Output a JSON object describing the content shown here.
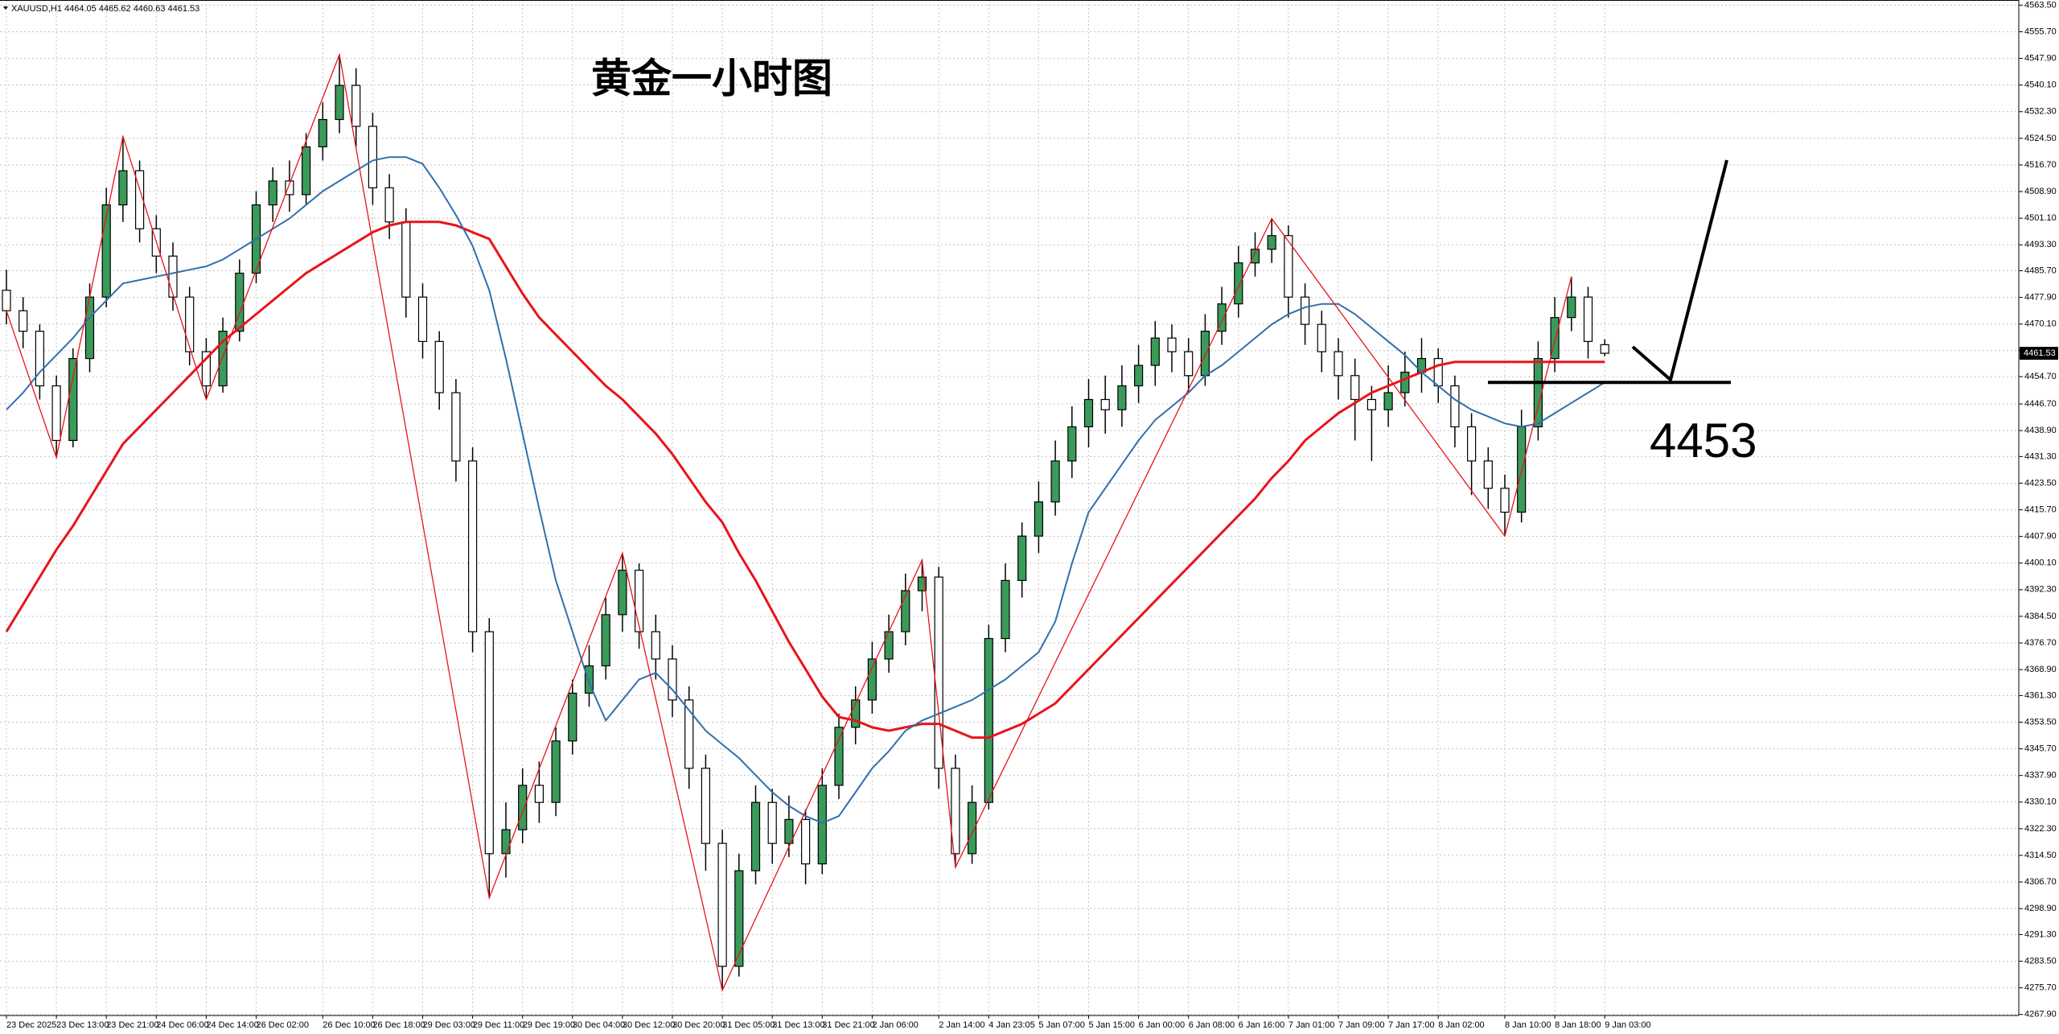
{
  "chart_data": {
    "type": "candlestick",
    "symbol": "XAUUSD,H1",
    "title": "黄金一小时图",
    "level": 4453,
    "up_color": "#3a9a5a",
    "down_color": "#ffffff",
    "grid": true,
    "ylim": [
      4267.6,
      4565
    ],
    "yticks": [
      {
        "value": 4563.5,
        "label": "4563.50"
      },
      {
        "value": 4555.7,
        "label": "4555.70"
      },
      {
        "value": 4547.9,
        "label": "4547.90"
      },
      {
        "value": 4540.1,
        "label": "4540.10"
      },
      {
        "value": 4532.3,
        "label": "4532.30"
      },
      {
        "value": 4524.5,
        "label": "4524.50"
      },
      {
        "value": 4516.7,
        "label": "4516.70"
      },
      {
        "value": 4508.9,
        "label": "4508.90"
      },
      {
        "value": 4501.1,
        "label": "4501.10"
      },
      {
        "value": 4493.3,
        "label": "4493.30"
      },
      {
        "value": 4485.7,
        "label": "4485.70"
      },
      {
        "value": 4477.9,
        "label": "4477.90"
      },
      {
        "value": 4470.1,
        "label": "4470.10"
      },
      {
        "value": 4462.3,
        "label": "4462.30"
      },
      {
        "value": 4454.7,
        "label": "4454.70"
      },
      {
        "value": 4446.7,
        "label": "4446.70"
      },
      {
        "value": 4438.9,
        "label": "4438.90"
      },
      {
        "value": 4431.3,
        "label": "4431.30"
      },
      {
        "value": 4423.5,
        "label": "4423.50"
      },
      {
        "value": 4415.7,
        "label": "4415.70"
      },
      {
        "value": 4407.9,
        "label": "4407.90"
      },
      {
        "value": 4400.1,
        "label": "4400.10"
      },
      {
        "value": 4392.3,
        "label": "4392.30"
      },
      {
        "value": 4384.5,
        "label": "4384.50"
      },
      {
        "value": 4376.7,
        "label": "4376.70"
      },
      {
        "value": 4368.9,
        "label": "4368.90"
      },
      {
        "value": 4361.3,
        "label": "4361.30"
      },
      {
        "value": 4353.5,
        "label": "4353.50"
      },
      {
        "value": 4345.7,
        "label": "4345.70"
      },
      {
        "value": 4337.9,
        "label": "4337.90"
      },
      {
        "value": 4330.1,
        "label": "4330.10"
      },
      {
        "value": 4322.3,
        "label": "4322.30"
      },
      {
        "value": 4314.5,
        "label": "4314.50"
      },
      {
        "value": 4306.7,
        "label": "4306.70"
      },
      {
        "value": 4298.9,
        "label": "4298.90"
      },
      {
        "value": 4291.3,
        "label": "4291.30"
      },
      {
        "value": 4283.5,
        "label": "4283.50"
      },
      {
        "value": 4275.7,
        "label": "4275.70"
      },
      {
        "value": 4267.9,
        "label": "4267.90"
      }
    ],
    "categories": [
      "23 Dec 2025",
      null,
      null,
      "23 Dec 13:00",
      null,
      null,
      "23 Dec 21:00",
      null,
      null,
      "24 Dec 06:00",
      null,
      null,
      "24 Dec 14:00",
      null,
      null,
      "26 Dec 02:00",
      null,
      null,
      null,
      "26 Dec 10:00",
      null,
      null,
      "26 Dec 18:00",
      null,
      null,
      "29 Dec 03:00",
      null,
      null,
      "29 Dec 11:00",
      null,
      null,
      "29 Dec 19:00",
      null,
      null,
      "30 Dec 04:00",
      null,
      null,
      "30 Dec 12:00",
      null,
      null,
      "30 Dec 20:00",
      null,
      null,
      "31 Dec 05:00",
      null,
      null,
      "31 Dec 13:00",
      null,
      null,
      "31 Dec 21:00",
      null,
      null,
      "2 Jan 06:00",
      null,
      null,
      null,
      "2 Jan 14:00",
      null,
      null,
      "4 Jan 23:05",
      null,
      null,
      "5 Jan 07:00",
      null,
      null,
      "5 Jan 15:00",
      null,
      null,
      "6 Jan 00:00",
      null,
      null,
      "6 Jan 08:00",
      null,
      null,
      "6 Jan 16:00",
      null,
      null,
      "7 Jan 01:00",
      null,
      null,
      "7 Jan 09:00",
      null,
      null,
      "7 Jan 17:00",
      null,
      null,
      "8 Jan 02:00",
      null,
      null,
      null,
      "8 Jan 10:00",
      null,
      null,
      "8 Jan 18:00",
      null,
      null,
      "9 Jan 03:00"
    ],
    "open": [
      4480,
      4474,
      4468,
      4452,
      4436,
      4460,
      4478,
      4505,
      4515,
      4498,
      4490,
      4478,
      4462,
      4452,
      4468,
      4485,
      4505,
      4512,
      4508,
      4522,
      4530,
      4540,
      4528,
      4510,
      4500,
      4478,
      4465,
      4450,
      4430,
      4380,
      4315,
      4322,
      4335,
      4330,
      4348,
      4362,
      4370,
      4385,
      4398,
      4380,
      4372,
      4360,
      4340,
      4318,
      4282,
      4310,
      4330,
      4318,
      4325,
      4312,
      4335,
      4352,
      4360,
      4372,
      4380,
      4392,
      4396,
      4340,
      4315,
      4330,
      4378,
      4395,
      4408,
      4418,
      4430,
      4440,
      4448,
      4445,
      4452,
      4458,
      4466,
      4462,
      4455,
      4468,
      4476,
      4488,
      4492,
      4496,
      4478,
      4470,
      4462,
      4455,
      4448,
      4445,
      4450,
      4456,
      4460,
      4452,
      4440,
      4430,
      4422,
      4415,
      4440,
      4460,
      4472,
      4478,
      4464.05
    ],
    "high": [
      4486,
      4478,
      4470,
      4455,
      4463,
      4482,
      4510,
      4525,
      4518,
      4502,
      4494,
      4481,
      4466,
      4472,
      4489,
      4509,
      4516,
      4518,
      4526,
      4535,
      4549,
      4545,
      4532,
      4514,
      4504,
      4482,
      4468,
      4454,
      4434,
      4384,
      4330,
      4340,
      4342,
      4352,
      4366,
      4376,
      4390,
      4403,
      4400,
      4385,
      4376,
      4364,
      4344,
      4322,
      4315,
      4335,
      4334,
      4332,
      4328,
      4340,
      4356,
      4364,
      4377,
      4385,
      4397,
      4401,
      4399,
      4344,
      4335,
      4382,
      4400,
      4412,
      4424,
      4436,
      4446,
      4454,
      4455,
      4458,
      4464,
      4471,
      4470,
      4466,
      4473,
      4481,
      4493,
      4497,
      4501,
      4499,
      4482,
      4474,
      4466,
      4460,
      4452,
      4458,
      4462,
      4466,
      4463,
      4455,
      4444,
      4434,
      4426,
      4445,
      4465,
      4478,
      4484,
      4481,
      4465.62
    ],
    "low": [
      4470,
      4463,
      4448,
      4431,
      4434,
      4456,
      4475,
      4500,
      4494,
      4485,
      4474,
      4458,
      4448,
      4450,
      4465,
      4482,
      4500,
      4503,
      4505,
      4518,
      4526,
      4522,
      4505,
      4495,
      4472,
      4460,
      4445,
      4424,
      4374,
      4302,
      4308,
      4318,
      4324,
      4326,
      4344,
      4358,
      4366,
      4380,
      4375,
      4366,
      4355,
      4334,
      4310,
      4275,
      4279,
      4306,
      4312,
      4314,
      4306,
      4309,
      4331,
      4347,
      4356,
      4368,
      4376,
      4386,
      4334,
      4311,
      4312,
      4328,
      4374,
      4390,
      4403,
      4414,
      4425,
      4434,
      4438,
      4440,
      4447,
      4452,
      4456,
      4450,
      4452,
      4464,
      4472,
      4484,
      4488,
      4472,
      4464,
      4456,
      4448,
      4436,
      4430,
      4440,
      4446,
      4450,
      4447,
      4434,
      4420,
      4416,
      4408,
      4412,
      4436,
      4456,
      4468,
      4460,
      4460.63
    ],
    "close": [
      4474,
      4468,
      4452,
      4436,
      4460,
      4478,
      4505,
      4515,
      4498,
      4490,
      4478,
      4462,
      4452,
      4468,
      4485,
      4505,
      4512,
      4508,
      4522,
      4530,
      4540,
      4528,
      4510,
      4500,
      4478,
      4465,
      4450,
      4430,
      4380,
      4315,
      4322,
      4335,
      4330,
      4348,
      4362,
      4370,
      4385,
      4398,
      4380,
      4372,
      4360,
      4340,
      4318,
      4282,
      4310,
      4330,
      4318,
      4325,
      4312,
      4335,
      4352,
      4360,
      4372,
      4380,
      4392,
      4396,
      4340,
      4315,
      4330,
      4378,
      4395,
      4408,
      4418,
      4430,
      4440,
      4448,
      4445,
      4452,
      4458,
      4466,
      4462,
      4455,
      4468,
      4476,
      4488,
      4492,
      4496,
      4478,
      4470,
      4462,
      4455,
      4448,
      4445,
      4450,
      4456,
      4460,
      4452,
      4440,
      4430,
      4422,
      4415,
      4440,
      4460,
      4472,
      4478,
      4465,
      4461.53
    ],
    "lines": [
      {
        "color": "#e8141a",
        "values": [
          4380,
          4388,
          4396,
          4404,
          4411,
          4419,
          4427,
          4435,
          4440,
          4445,
          4450,
          4455,
          4460,
          4465,
          4469,
          4473,
          4477,
          4481,
          4485,
          4488,
          4491,
          4494,
          4497,
          4499,
          4500,
          4500,
          4500,
          4499,
          4497,
          4495,
          4487,
          4479,
          4472,
          4467,
          4462,
          4457,
          4452,
          4448,
          4443,
          4438,
          4432,
          4425,
          4418,
          4412,
          4403,
          4395,
          4386,
          4377,
          4369,
          4361,
          4355,
          4354,
          4352,
          4351,
          4352,
          4353,
          4353,
          4351,
          4349,
          4349,
          4351,
          4353,
          4356,
          4359,
          4364,
          4369,
          4374,
          4379,
          4384,
          4389,
          4394,
          4399,
          4404,
          4409,
          4414,
          4419,
          4425,
          4430,
          4436,
          4440,
          4444,
          4447,
          4450,
          4452,
          4454,
          4456,
          4458,
          4459,
          4459,
          4459,
          4459,
          4459,
          4459,
          4459,
          4459,
          4459,
          4459
        ]
      },
      {
        "color": "#2f6fb0",
        "values": [
          4445,
          4450,
          4456,
          4461,
          4466,
          4472,
          4477,
          4482,
          4483,
          4484,
          4485,
          4486,
          4487,
          4489,
          4492,
          4495,
          4498,
          4501,
          4505,
          4509,
          4512,
          4515,
          4518,
          4519,
          4519,
          4517,
          4510,
          4502,
          4493,
          4480,
          4460,
          4438,
          4416,
          4395,
          4380,
          4365,
          4354,
          4360,
          4366,
          4368,
          4363,
          4357,
          4351,
          4347,
          4343,
          4338,
          4333,
          4329,
          4326,
          4324,
          4326,
          4333,
          4340,
          4345,
          4351,
          4354,
          4356,
          4358,
          4360,
          4363,
          4366,
          4370,
          4374,
          4383,
          4400,
          4415,
          4422,
          4429,
          4436,
          4442,
          4446,
          4450,
          4455,
          4458,
          4462,
          4466,
          4470,
          4473,
          4475,
          4476,
          4476,
          4473,
          4469,
          4465,
          4461,
          4456,
          4452,
          4448,
          4445,
          4443,
          4441,
          4440,
          4441,
          4444,
          4447,
          4450,
          4453
        ]
      }
    ],
    "zigzag": {
      "color": "#e8141a",
      "x": [
        0,
        3,
        7,
        12,
        20,
        29,
        37,
        43,
        55,
        57,
        76,
        90,
        94
      ],
      "values": [
        4474,
        4431,
        4525,
        4448,
        4549,
        4302,
        4403,
        4275,
        4401,
        4311,
        4501,
        4408,
        4484
      ]
    }
  }
}
